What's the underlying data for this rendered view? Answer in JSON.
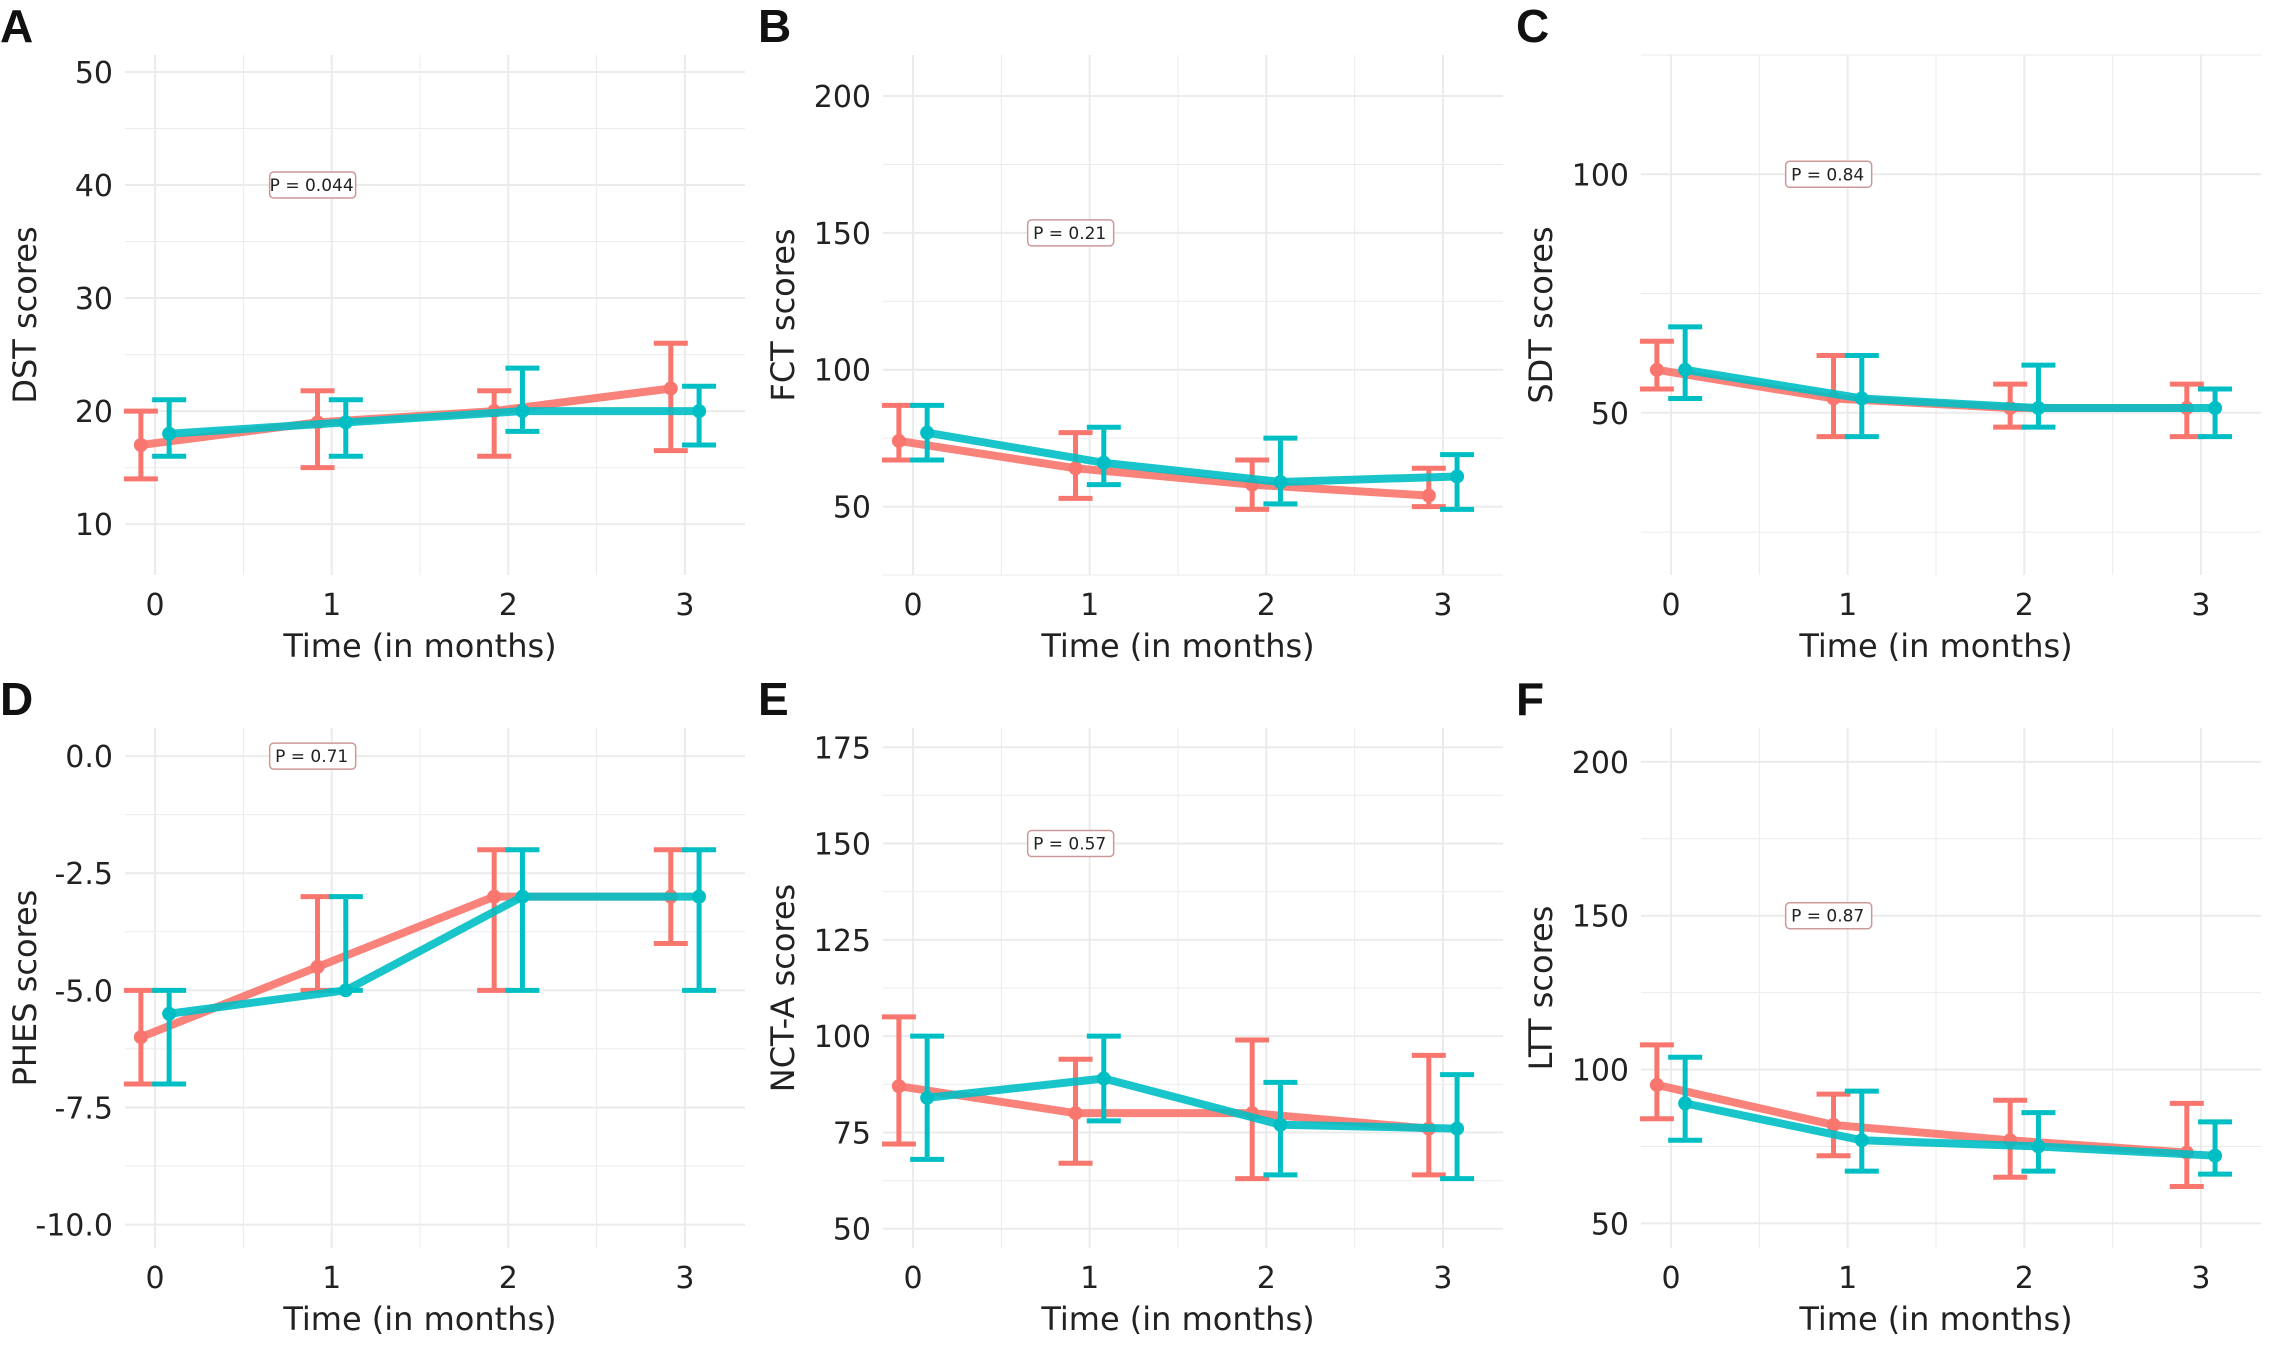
{
  "colors": {
    "group_1": "#F8766D",
    "group_2": "#00BFC4",
    "grid": "#EBEBEB"
  },
  "chart_data": [
    {
      "panel": "A",
      "type": "line",
      "xlabel": "Time (in months)",
      "ylabel": "DST scores",
      "x": [
        0,
        1,
        2,
        3
      ],
      "xticks": [
        "0",
        "1",
        "2",
        "3"
      ],
      "yticks": [
        10,
        20,
        30,
        40,
        50
      ],
      "ylim": [
        5.5,
        51.5
      ],
      "grid": true,
      "annotation": {
        "text": "P = 0.044",
        "x": 1,
        "y": 40
      },
      "series": [
        {
          "color": "#F8766D",
          "mean": [
            17,
            19,
            20,
            22
          ],
          "lower": [
            14,
            15,
            16,
            16.5
          ],
          "upper": [
            20,
            21.8,
            21.8,
            26
          ]
        },
        {
          "color": "#00BFC4",
          "mean": [
            18,
            19,
            20,
            20
          ],
          "lower": [
            16,
            16,
            18.2,
            17
          ],
          "upper": [
            21,
            21,
            23.8,
            22.2
          ]
        }
      ]
    },
    {
      "panel": "B",
      "type": "line",
      "xlabel": "Time (in months)",
      "ylabel": "FCT scores",
      "x": [
        0,
        1,
        2,
        3
      ],
      "xticks": [
        "0",
        "1",
        "2",
        "3"
      ],
      "yticks": [
        50,
        100,
        150,
        200
      ],
      "ylim": [
        25,
        215
      ],
      "grid": true,
      "annotation": {
        "text": "P = 0.21",
        "x": 1,
        "y": 150
      },
      "series": [
        {
          "color": "#F8766D",
          "mean": [
            74,
            64,
            58,
            54
          ],
          "lower": [
            67,
            53,
            49,
            50
          ],
          "upper": [
            87,
            77,
            67,
            64
          ]
        },
        {
          "color": "#00BFC4",
          "mean": [
            77,
            66,
            59,
            61
          ],
          "lower": [
            67,
            58,
            51,
            49
          ],
          "upper": [
            87,
            79,
            75,
            69
          ]
        }
      ]
    },
    {
      "panel": "C",
      "type": "line",
      "xlabel": "Time (in months)",
      "ylabel": "SDT scores",
      "x": [
        0,
        1,
        2,
        3
      ],
      "xticks": [
        "0",
        "1",
        "2",
        "3"
      ],
      "yticks": [
        50,
        100
      ],
      "ylim": [
        16,
        125
      ],
      "grid": true,
      "annotation": {
        "text": "P = 0.84",
        "x": 1,
        "y": 100
      },
      "series": [
        {
          "color": "#F8766D",
          "mean": [
            59,
            53,
            51,
            51
          ],
          "lower": [
            55,
            45,
            47,
            45
          ],
          "upper": [
            65,
            62,
            56,
            56
          ]
        },
        {
          "color": "#00BFC4",
          "mean": [
            59,
            53,
            51,
            51
          ],
          "lower": [
            53,
            45,
            47,
            45
          ],
          "upper": [
            68,
            62,
            60,
            55
          ]
        }
      ]
    },
    {
      "panel": "D",
      "type": "line",
      "xlabel": "Time (in months)",
      "ylabel": "PHES scores",
      "x": [
        0,
        1,
        2,
        3
      ],
      "xticks": [
        "0",
        "1",
        "2",
        "3"
      ],
      "yticks": [
        0.0,
        -2.5,
        -5.0,
        -7.5,
        -10.0
      ],
      "ytick_labels": [
        "0.0",
        "-2.5",
        "-5.0",
        "-7.5",
        "-10.0"
      ],
      "ylim": [
        -10.5,
        0.6
      ],
      "grid": true,
      "annotation": {
        "text": "P = 0.71",
        "x": 1,
        "y": 0
      },
      "series": [
        {
          "color": "#F8766D",
          "mean": [
            -6,
            -4.5,
            -3,
            -3
          ],
          "lower": [
            -7,
            -5,
            -5,
            -4
          ],
          "upper": [
            -5,
            -3,
            -2,
            -2
          ]
        },
        {
          "color": "#00BFC4",
          "mean": [
            -5.5,
            -5,
            -3,
            -3
          ],
          "lower": [
            -7,
            -5,
            -5,
            -5
          ],
          "upper": [
            -5,
            -3,
            -2,
            -2
          ]
        }
      ]
    },
    {
      "panel": "E",
      "type": "line",
      "xlabel": "Time (in months)",
      "ylabel": "NCT-A scores",
      "x": [
        0,
        1,
        2,
        3
      ],
      "xticks": [
        "0",
        "1",
        "2",
        "3"
      ],
      "yticks": [
        50,
        75,
        100,
        125,
        150,
        175
      ],
      "ylim": [
        45,
        180
      ],
      "grid": true,
      "annotation": {
        "text": "P = 0.57",
        "x": 1,
        "y": 150
      },
      "series": [
        {
          "color": "#F8766D",
          "mean": [
            87,
            80,
            80,
            76
          ],
          "lower": [
            72,
            67,
            63,
            64
          ],
          "upper": [
            105,
            94,
            99,
            95
          ]
        },
        {
          "color": "#00BFC4",
          "mean": [
            84,
            89,
            77,
            76
          ],
          "lower": [
            68,
            78,
            64,
            63
          ],
          "upper": [
            100,
            100,
            88,
            90
          ]
        }
      ]
    },
    {
      "panel": "F",
      "type": "line",
      "xlabel": "Time (in months)",
      "ylabel": "LTT scores",
      "x": [
        0,
        1,
        2,
        3
      ],
      "xticks": [
        "0",
        "1",
        "2",
        "3"
      ],
      "yticks": [
        50,
        100,
        150,
        200
      ],
      "ylim": [
        42,
        211
      ],
      "grid": true,
      "annotation": {
        "text": "P = 0.87",
        "x": 1,
        "y": 150
      },
      "series": [
        {
          "color": "#F8766D",
          "mean": [
            95,
            82,
            77,
            73
          ],
          "lower": [
            84,
            72,
            65,
            62
          ],
          "upper": [
            108,
            92,
            90,
            89
          ]
        },
        {
          "color": "#00BFC4",
          "mean": [
            89,
            77,
            75,
            72
          ],
          "lower": [
            77,
            67,
            67,
            66
          ],
          "upper": [
            104,
            93,
            86,
            83
          ]
        }
      ]
    }
  ]
}
